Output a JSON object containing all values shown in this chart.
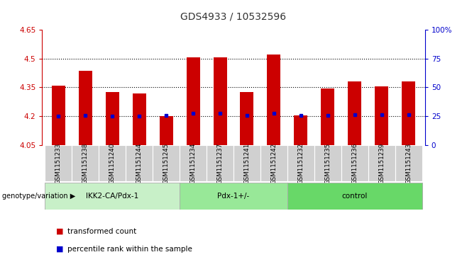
{
  "title": "GDS4933 / 10532596",
  "samples": [
    "GSM1151233",
    "GSM1151238",
    "GSM1151240",
    "GSM1151244",
    "GSM1151245",
    "GSM1151234",
    "GSM1151237",
    "GSM1151241",
    "GSM1151242",
    "GSM1151232",
    "GSM1151235",
    "GSM1151236",
    "GSM1151239",
    "GSM1151243"
  ],
  "red_values": [
    4.36,
    4.435,
    4.325,
    4.32,
    4.2,
    4.505,
    4.505,
    4.325,
    4.52,
    4.205,
    4.345,
    4.38,
    4.355,
    4.38
  ],
  "blue_values": [
    4.2,
    4.205,
    4.2,
    4.2,
    4.205,
    4.215,
    4.215,
    4.205,
    4.215,
    4.205,
    4.205,
    4.21,
    4.21,
    4.21
  ],
  "groups": [
    {
      "label": "IKK2-CA/Pdx-1",
      "start": 0,
      "end": 5,
      "color": "#c8f0c8"
    },
    {
      "label": "Pdx-1+/-",
      "start": 5,
      "end": 9,
      "color": "#98e898"
    },
    {
      "label": "control",
      "start": 9,
      "end": 14,
      "color": "#68d868"
    }
  ],
  "ylim_left": [
    4.05,
    4.65
  ],
  "ylim_right": [
    0,
    100
  ],
  "yticks_left": [
    4.05,
    4.2,
    4.35,
    4.5,
    4.65
  ],
  "yticks_right": [
    0,
    25,
    50,
    75,
    100
  ],
  "ytick_labels_left": [
    "4.05",
    "4.2",
    "4.35",
    "4.5",
    "4.65"
  ],
  "ytick_labels_right": [
    "0",
    "25",
    "50",
    "75",
    "100%"
  ],
  "hlines": [
    4.2,
    4.35,
    4.5
  ],
  "bar_color": "#cc0000",
  "dot_color": "#0000cc",
  "bar_width": 0.5,
  "group_label_prefix": "genotype/variation",
  "legend_red": "transformed count",
  "legend_blue": "percentile rank within the sample",
  "bg_color": "#ffffff",
  "left_axis_color": "#cc0000",
  "right_axis_color": "#0000cc",
  "xtick_bg_color": "#d0d0d0",
  "xtick_border_color": "#ffffff"
}
